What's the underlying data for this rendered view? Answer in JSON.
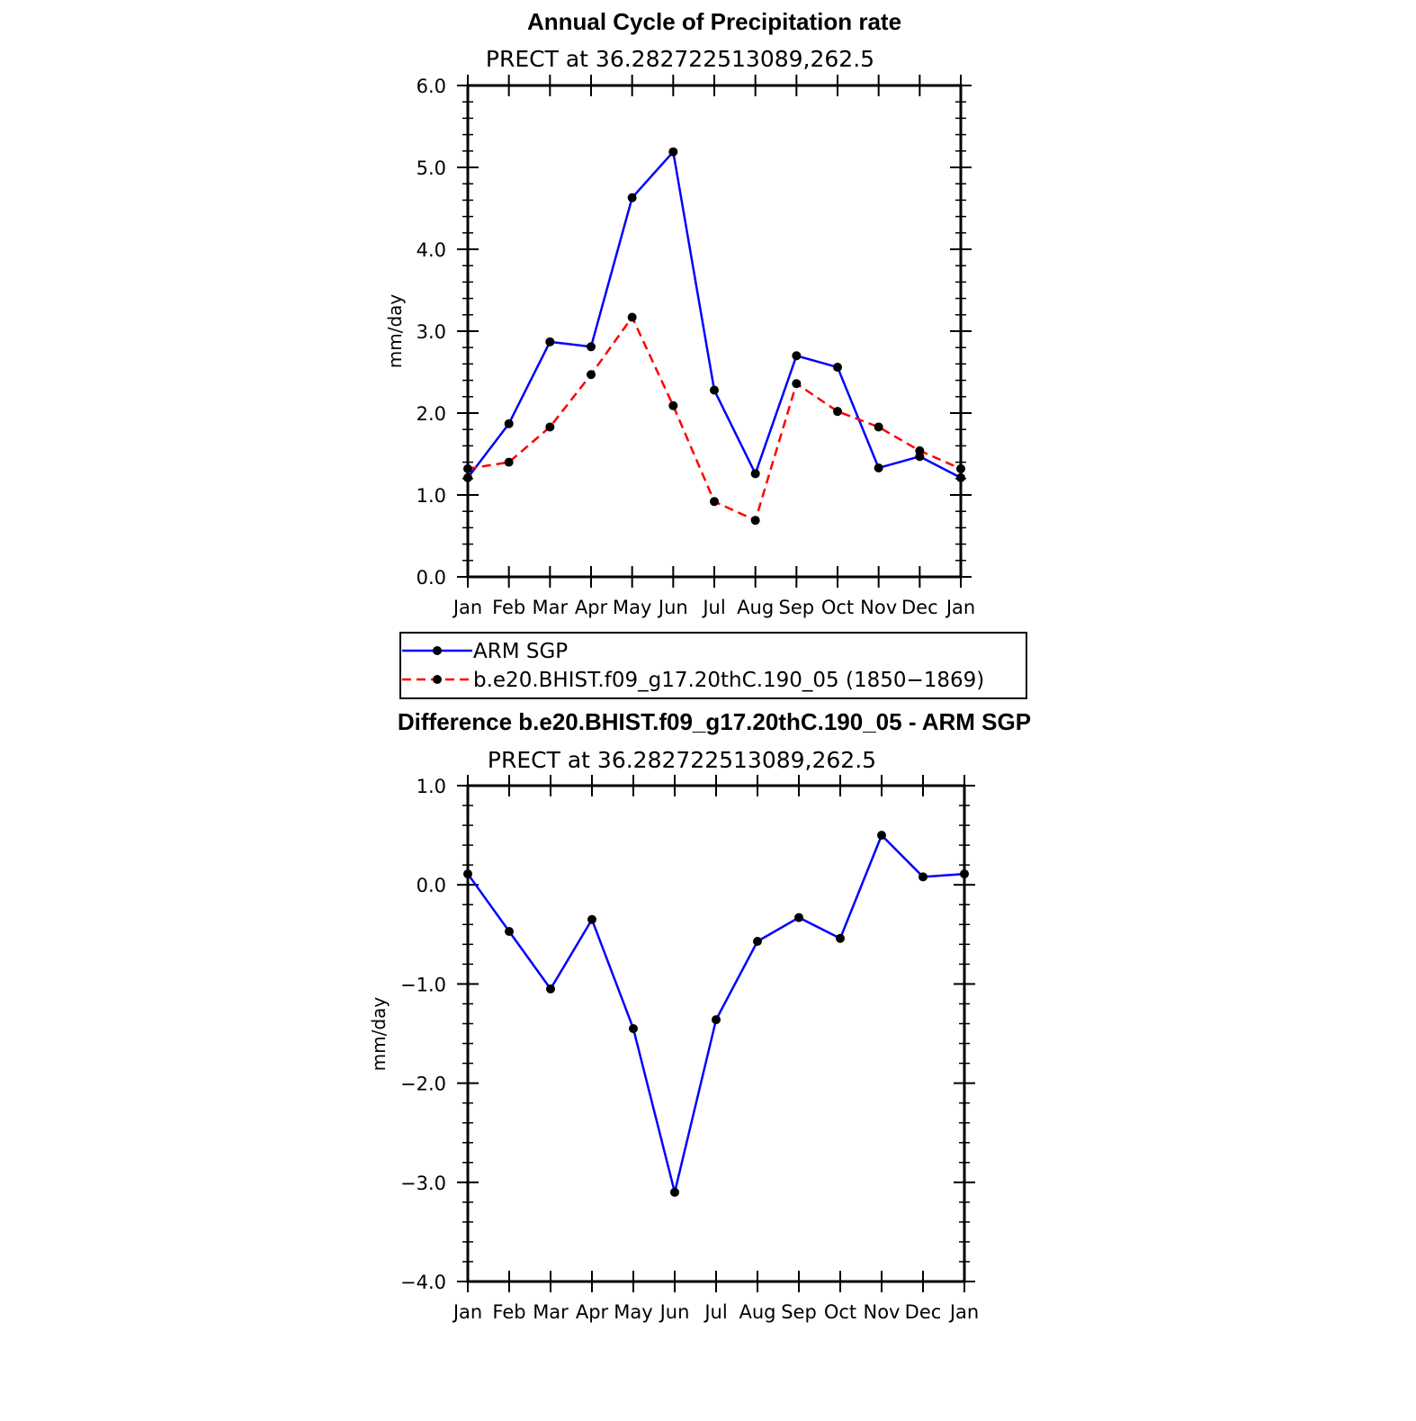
{
  "months": [
    "Jan",
    "Feb",
    "Mar",
    "Apr",
    "May",
    "Jun",
    "Jul",
    "Aug",
    "Sep",
    "Oct",
    "Nov",
    "Dec",
    "Jan"
  ],
  "colors": {
    "obs": "#0000ff",
    "model": "#ff0000",
    "diff": "#0000ff",
    "marker": "#000000"
  },
  "chart_data": [
    {
      "type": "line",
      "title": "Annual Cycle of Precipitation rate",
      "subtitle": "PRECT at 36.282722513089,262.5",
      "xlabel": "",
      "ylabel": "mm/day",
      "ylim": [
        0.0,
        6.0
      ],
      "yticks": [
        "0.0",
        "1.0",
        "2.0",
        "3.0",
        "4.0",
        "5.0",
        "6.0"
      ],
      "categories": [
        "Jan",
        "Feb",
        "Mar",
        "Apr",
        "May",
        "Jun",
        "Jul",
        "Aug",
        "Sep",
        "Oct",
        "Nov",
        "Dec",
        "Jan"
      ],
      "series": [
        {
          "name": "ARM SGP",
          "style": "solid",
          "color": "#0000ff",
          "values": [
            1.21,
            1.87,
            2.87,
            2.81,
            4.63,
            5.19,
            2.28,
            1.26,
            2.7,
            2.56,
            1.33,
            1.47,
            1.21
          ]
        },
        {
          "name": "b.e20.BHIST.f09_g17.20thC.190_05 (1850−1869)",
          "style": "dashed",
          "color": "#ff0000",
          "values": [
            1.32,
            1.4,
            1.83,
            2.47,
            3.17,
            2.09,
            0.92,
            0.69,
            2.36,
            2.02,
            1.83,
            1.54,
            1.32
          ]
        }
      ],
      "legend": "below"
    },
    {
      "type": "line",
      "title": "Difference b.e20.BHIST.f09_g17.20thC.190_05 - ARM SGP",
      "subtitle": "PRECT at 36.282722513089,262.5",
      "xlabel": "",
      "ylabel": "mm/day",
      "ylim": [
        -4.0,
        1.0
      ],
      "yticks": [
        "−4.0",
        "−3.0",
        "−2.0",
        "−1.0",
        "0.0",
        "1.0"
      ],
      "categories": [
        "Jan",
        "Feb",
        "Mar",
        "Apr",
        "May",
        "Jun",
        "Jul",
        "Aug",
        "Sep",
        "Oct",
        "Nov",
        "Dec",
        "Jan"
      ],
      "series": [
        {
          "style": "solid",
          "color": "#0000ff",
          "values": [
            0.11,
            -0.47,
            -1.05,
            -0.35,
            -1.45,
            -3.1,
            -1.36,
            -0.57,
            -0.33,
            -0.54,
            0.5,
            0.08,
            0.11
          ]
        }
      ]
    }
  ]
}
